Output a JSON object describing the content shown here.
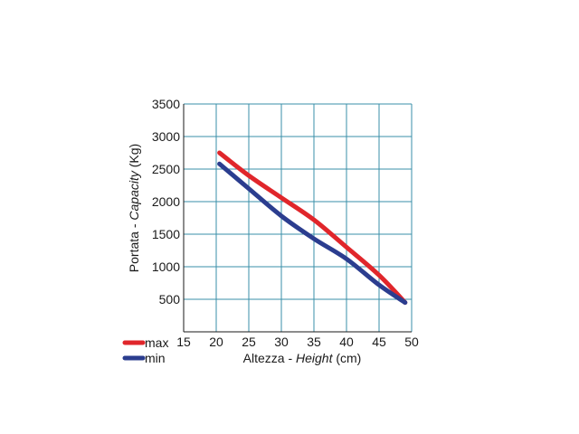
{
  "chart_data": {
    "type": "line",
    "xlabel_plain": "Altezza - ",
    "xlabel_italic": "Height",
    "xlabel_unit": " (cm)",
    "ylabel_plain": "Portata - ",
    "ylabel_italic": "Capacity",
    "ylabel_unit": " (Kg)",
    "xlim": [
      15,
      50
    ],
    "ylim": [
      0,
      3500
    ],
    "x_ticks": [
      15,
      20,
      25,
      30,
      35,
      40,
      45,
      50
    ],
    "y_ticks": [
      500,
      1000,
      1500,
      2000,
      2500,
      3000,
      3500
    ],
    "grid": true,
    "legend_position": "bottom-left",
    "series": [
      {
        "name": "max",
        "color": "#e0262b",
        "points": [
          [
            20.5,
            2750
          ],
          [
            25,
            2400
          ],
          [
            30,
            2060
          ],
          [
            35,
            1720
          ],
          [
            40,
            1300
          ],
          [
            45,
            870
          ],
          [
            49,
            450
          ]
        ]
      },
      {
        "name": "min",
        "color": "#2b3d8f",
        "points": [
          [
            20.5,
            2580
          ],
          [
            25,
            2200
          ],
          [
            30,
            1780
          ],
          [
            35,
            1430
          ],
          [
            40,
            1120
          ],
          [
            45,
            720
          ],
          [
            49,
            450
          ]
        ]
      }
    ],
    "grid_color": "#3a8fa8",
    "axis_color": "#1a1a1a"
  }
}
